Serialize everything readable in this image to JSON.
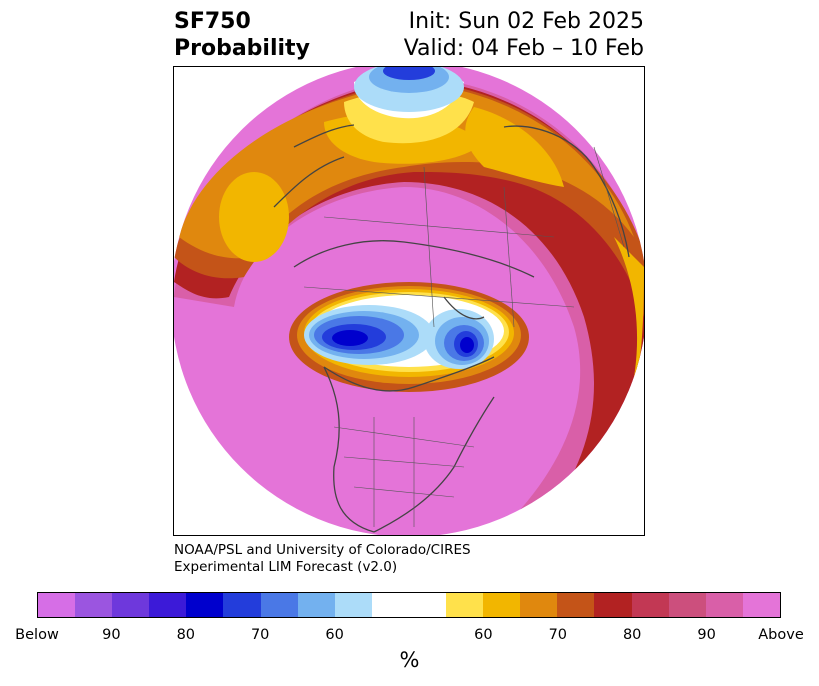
{
  "title": {
    "left_line1": "SF750",
    "left_line2": "Probability",
    "right_line1": "Init: Sun 02 Feb 2025",
    "right_line2": "Valid: 04 Feb – 10 Feb"
  },
  "credit": {
    "line1": "NOAA/PSL and University of Colorado/CIRES",
    "line2": "Experimental LIM Forecast (v2.0)"
  },
  "colorbar": {
    "label": "%",
    "segments": [
      "#d66ee6",
      "#9b55e0",
      "#6e38dc",
      "#3c1ad8",
      "#0000cd",
      "#233ddb",
      "#4a78e6",
      "#73b1ef",
      "#acdcf9",
      "#ffffff",
      "#ffffff",
      "#ffe14b",
      "#f2b600",
      "#e0880e",
      "#c45418",
      "#b22222",
      "#c23854",
      "#cc4f7d",
      "#d95fa8",
      "#e474d8"
    ],
    "ticks": [
      {
        "label": "Below",
        "frac": 0
      },
      {
        "label": "90",
        "frac": 0.1
      },
      {
        "label": "80",
        "frac": 0.2
      },
      {
        "label": "70",
        "frac": 0.3
      },
      {
        "label": "60",
        "frac": 0.4
      },
      {
        "label": "60",
        "frac": 0.6
      },
      {
        "label": "70",
        "frac": 0.7
      },
      {
        "label": "80",
        "frac": 0.8
      },
      {
        "label": "90",
        "frac": 0.9
      },
      {
        "label": "Above",
        "frac": 1
      }
    ]
  },
  "map": {
    "projection": "north-polar-stereographic",
    "fill_colors": {
      "above_high": "#e474d8",
      "above_90": "#d95fa8",
      "above_80": "#cc4f7d",
      "above_70": "#b22222",
      "above_65": "#c45418",
      "above_60": "#e0880e",
      "above_55": "#f2b600",
      "above_50": "#ffe14b",
      "neutral": "#ffffff",
      "below_55": "#acdcf9",
      "below_60": "#73b1ef",
      "below_70": "#4a78e6",
      "below_80": "#233ddb",
      "below_90": "#0000cd"
    },
    "coastline_color": "#444444"
  }
}
